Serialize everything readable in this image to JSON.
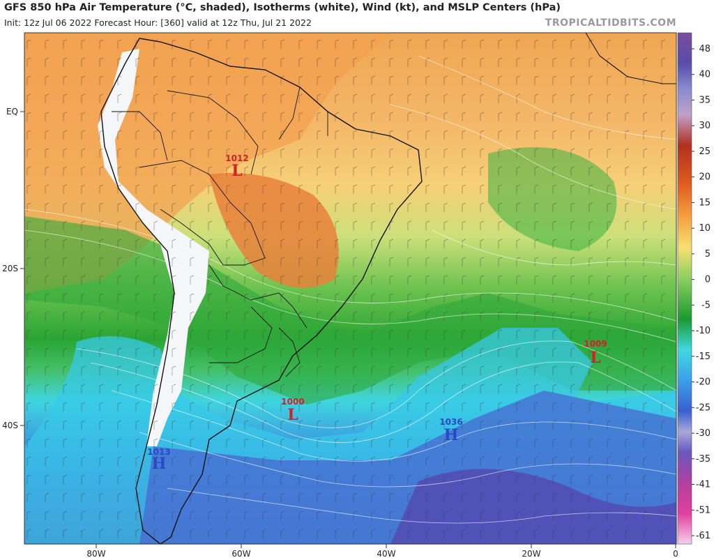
{
  "header": {
    "title": "GFS 850 hPa Air Temperature (°C, shaded), Isotherms (white), Wind (kt), and MSLP Centers (hPa)",
    "subtitle": "Init: 12z Jul 06 2022   Forecast Hour: [360]   valid at 12z Thu, Jul 21 2022",
    "brand": "TROPICALTIDBITS.COM"
  },
  "map": {
    "lat_labels": [
      "EQ",
      "20S",
      "40S"
    ],
    "lon_labels": [
      "80W",
      "60W",
      "40W",
      "20W",
      "0"
    ]
  },
  "pressure_centers": [
    {
      "value": "1012",
      "letter": "L",
      "kind": "low"
    },
    {
      "value": "1009",
      "letter": "L",
      "kind": "low"
    },
    {
      "value": "1000",
      "letter": "L",
      "kind": "low"
    },
    {
      "value": "1036",
      "letter": "H",
      "kind": "high"
    },
    {
      "value": "1013",
      "letter": "H",
      "kind": "high"
    }
  ],
  "colorbar": {
    "labels": [
      "48",
      "40",
      "35",
      "30",
      "25",
      "20",
      "15",
      "10",
      "5",
      "0",
      "-5",
      "-10",
      "-15",
      "-20",
      "-25",
      "-30",
      "-35",
      "-41",
      "-51",
      "-61"
    ]
  },
  "colors": {
    "low_center": "#d0202a",
    "high_center": "#2a48c8",
    "land_outline": "#111111",
    "isotherm": "#ffffff"
  }
}
